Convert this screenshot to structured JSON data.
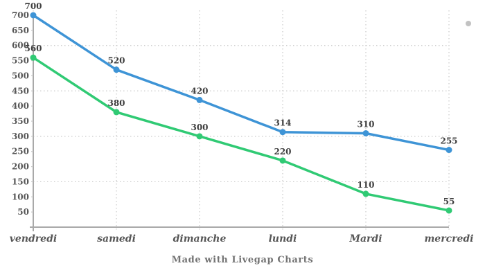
{
  "chart_data": {
    "type": "line",
    "title": "",
    "xlabel": "",
    "ylabel": "",
    "legend": "none",
    "grid": "dotted",
    "data_labels": true,
    "categories": [
      "vendredi",
      "samedi",
      "dimanche",
      "lundi",
      "Mardi",
      "mercredi"
    ],
    "series": [
      {
        "name": "blue-series",
        "color": "#3e94d6",
        "values": [
          700,
          520,
          420,
          314,
          310,
          255
        ]
      },
      {
        "name": "green-series",
        "color": "#30ca74",
        "values": [
          560,
          380,
          300,
          220,
          110,
          55
        ]
      }
    ],
    "y_axis": {
      "min": 0,
      "max": 700,
      "tick_step": 50,
      "grid_step": 150
    }
  },
  "footer": {
    "credit": "Made with Livegap Charts"
  },
  "decorations": {
    "corner_dot": "top-right gray dot"
  },
  "colors": {
    "axis": "#a9a9a9",
    "grid": "#c9c9c9",
    "tick_label": "#585858",
    "data_label": "#3f3f3f",
    "footer_text": "#737373",
    "corner_dot": "#c2c2c2",
    "background": "#ffffff"
  }
}
